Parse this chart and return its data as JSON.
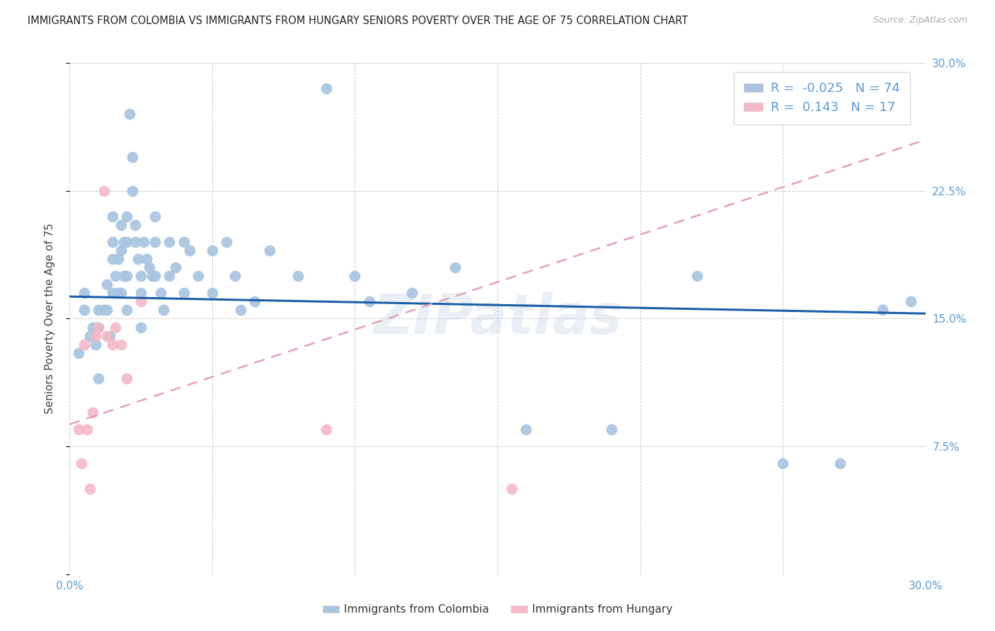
{
  "title": "IMMIGRANTS FROM COLOMBIA VS IMMIGRANTS FROM HUNGARY SENIORS POVERTY OVER THE AGE OF 75 CORRELATION CHART",
  "source": "Source: ZipAtlas.com",
  "ylabel": "Seniors Poverty Over the Age of 75",
  "xlim": [
    0.0,
    0.3
  ],
  "ylim": [
    0.0,
    0.3
  ],
  "xticks": [
    0.0,
    0.05,
    0.1,
    0.15,
    0.2,
    0.25,
    0.3
  ],
  "yticks": [
    0.0,
    0.075,
    0.15,
    0.225,
    0.3
  ],
  "xtick_labels": [
    "0.0%",
    "",
    "",
    "",
    "",
    "",
    "30.0%"
  ],
  "ytick_labels": [
    "",
    "7.5%",
    "15.0%",
    "22.5%",
    "30.0%"
  ],
  "colombia_color": "#a8c4e0",
  "colombia_edge": "#7aafd4",
  "hungary_color": "#f4b8c8",
  "hungary_edge": "#e890aa",
  "trendline_colombia_color": "#1a5fa8",
  "trendline_hungary_color": "#e8a0b0",
  "colombia_R": -0.025,
  "colombia_N": 74,
  "hungary_R": 0.143,
  "hungary_N": 17,
  "watermark": "ZIPatlas",
  "colombia_trendline": [
    0.0,
    0.3,
    0.163,
    0.153
  ],
  "hungary_trendline": [
    0.0,
    0.3,
    0.088,
    0.255
  ],
  "colombia_scatter_x": [
    0.003,
    0.005,
    0.005,
    0.007,
    0.008,
    0.009,
    0.01,
    0.01,
    0.01,
    0.012,
    0.013,
    0.013,
    0.014,
    0.015,
    0.015,
    0.015,
    0.015,
    0.016,
    0.017,
    0.017,
    0.018,
    0.018,
    0.018,
    0.019,
    0.019,
    0.02,
    0.02,
    0.02,
    0.02,
    0.021,
    0.022,
    0.022,
    0.023,
    0.023,
    0.024,
    0.025,
    0.025,
    0.025,
    0.026,
    0.027,
    0.028,
    0.029,
    0.03,
    0.03,
    0.03,
    0.032,
    0.033,
    0.035,
    0.035,
    0.037,
    0.04,
    0.04,
    0.042,
    0.045,
    0.05,
    0.05,
    0.055,
    0.058,
    0.06,
    0.065,
    0.07,
    0.08,
    0.09,
    0.1,
    0.105,
    0.12,
    0.135,
    0.16,
    0.19,
    0.22,
    0.25,
    0.27,
    0.285,
    0.295
  ],
  "colombia_scatter_y": [
    0.13,
    0.165,
    0.155,
    0.14,
    0.145,
    0.135,
    0.155,
    0.145,
    0.115,
    0.155,
    0.17,
    0.155,
    0.14,
    0.21,
    0.195,
    0.185,
    0.165,
    0.175,
    0.185,
    0.165,
    0.205,
    0.19,
    0.165,
    0.195,
    0.175,
    0.21,
    0.195,
    0.175,
    0.155,
    0.27,
    0.245,
    0.225,
    0.205,
    0.195,
    0.185,
    0.175,
    0.165,
    0.145,
    0.195,
    0.185,
    0.18,
    0.175,
    0.21,
    0.195,
    0.175,
    0.165,
    0.155,
    0.195,
    0.175,
    0.18,
    0.195,
    0.165,
    0.19,
    0.175,
    0.19,
    0.165,
    0.195,
    0.175,
    0.155,
    0.16,
    0.19,
    0.175,
    0.285,
    0.175,
    0.16,
    0.165,
    0.18,
    0.085,
    0.085,
    0.175,
    0.065,
    0.065,
    0.155,
    0.16
  ],
  "hungary_scatter_x": [
    0.003,
    0.004,
    0.005,
    0.006,
    0.007,
    0.008,
    0.009,
    0.01,
    0.012,
    0.013,
    0.015,
    0.016,
    0.018,
    0.02,
    0.025,
    0.09,
    0.155
  ],
  "hungary_scatter_y": [
    0.085,
    0.065,
    0.135,
    0.085,
    0.05,
    0.095,
    0.14,
    0.145,
    0.225,
    0.14,
    0.135,
    0.145,
    0.135,
    0.115,
    0.16,
    0.085,
    0.05
  ]
}
